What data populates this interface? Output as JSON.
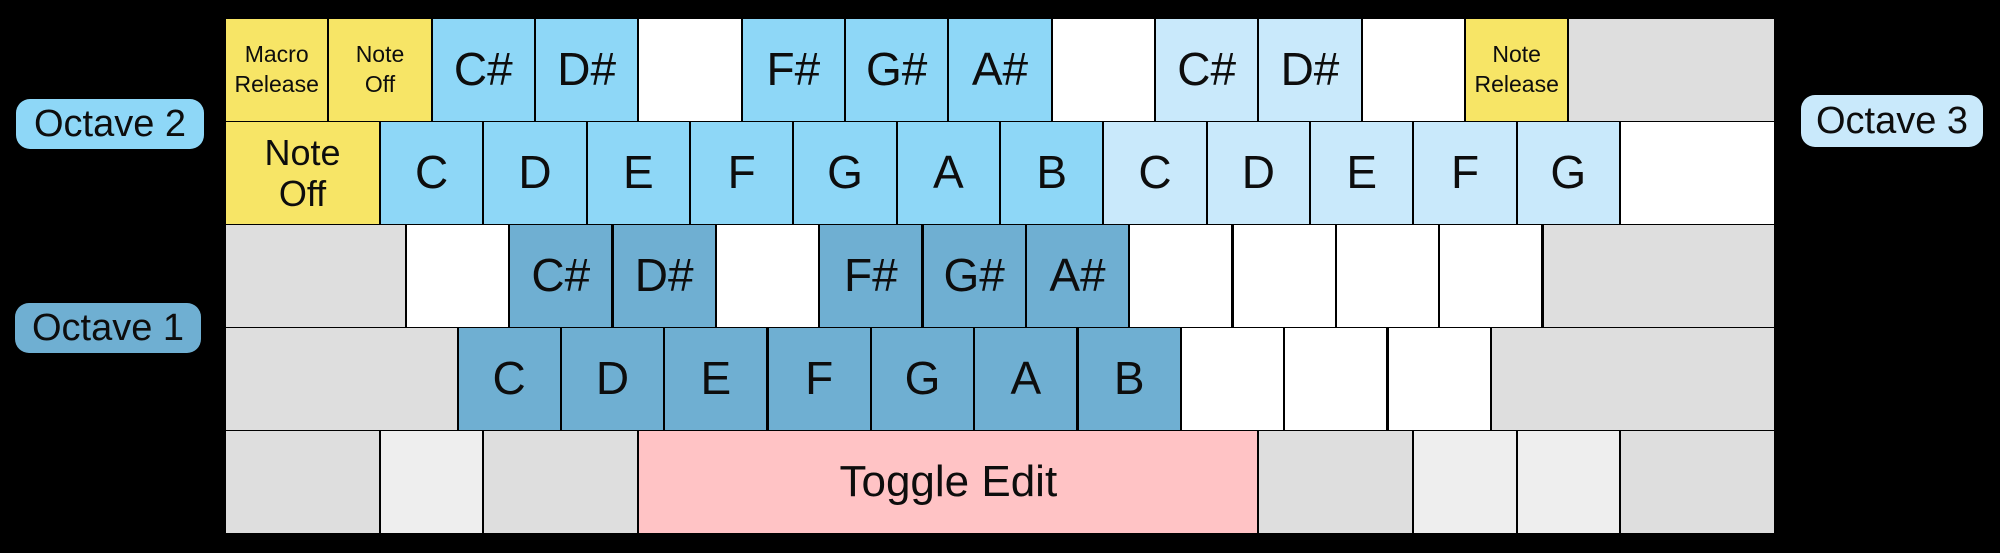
{
  "colors": {
    "background": "#000000",
    "key_border": "#000000",
    "text": "#0d0d0d",
    "octave1": "#6FAFD2",
    "octave2": "#8ED7F7",
    "octave3": "#C9E9FB",
    "function": "#F7E566",
    "toggle": "#FFC3C5",
    "blank": "#FFFFFF",
    "gray": "#DEDEDE",
    "graylight": "#EEEEEE",
    "pill_octave1": "#6FAFD2",
    "pill_octave2": "#8ED7F7",
    "pill_octave3": "#C9E9FB"
  },
  "labels": {
    "octave1": "Octave 1",
    "octave2": "Octave 2",
    "octave3": "Octave 3"
  },
  "keyboard": {
    "rows": [
      {
        "name": "number-row",
        "keys": [
          {
            "label": "Macro\nRelease",
            "type": "function",
            "w": 1,
            "fs": "sm"
          },
          {
            "label": "Note\nOff",
            "type": "function",
            "w": 1,
            "fs": "sm"
          },
          {
            "label": "C#",
            "type": "octave2",
            "w": 1
          },
          {
            "label": "D#",
            "type": "octave2",
            "w": 1
          },
          {
            "label": "",
            "type": "blank",
            "w": 1
          },
          {
            "label": "F#",
            "type": "octave2",
            "w": 1
          },
          {
            "label": "G#",
            "type": "octave2",
            "w": 1
          },
          {
            "label": "A#",
            "type": "octave2",
            "w": 1
          },
          {
            "label": "",
            "type": "blank",
            "w": 1
          },
          {
            "label": "C#",
            "type": "octave3",
            "w": 1
          },
          {
            "label": "D#",
            "type": "octave3",
            "w": 1
          },
          {
            "label": "",
            "type": "blank",
            "w": 1
          },
          {
            "label": "Note\nRelease",
            "type": "function",
            "w": 1,
            "fs": "sm"
          },
          {
            "label": "",
            "type": "gray",
            "w": 2
          }
        ]
      },
      {
        "name": "qwerty-row",
        "keys": [
          {
            "label": "Note\nOff",
            "type": "function",
            "w": 1.5,
            "fs": "md"
          },
          {
            "label": "C",
            "type": "octave2",
            "w": 1
          },
          {
            "label": "D",
            "type": "octave2",
            "w": 1
          },
          {
            "label": "E",
            "type": "octave2",
            "w": 1
          },
          {
            "label": "F",
            "type": "octave2",
            "w": 1
          },
          {
            "label": "G",
            "type": "octave2",
            "w": 1
          },
          {
            "label": "A",
            "type": "octave2",
            "w": 1
          },
          {
            "label": "B",
            "type": "octave2",
            "w": 1
          },
          {
            "label": "C",
            "type": "octave3",
            "w": 1
          },
          {
            "label": "D",
            "type": "octave3",
            "w": 1
          },
          {
            "label": "E",
            "type": "octave3",
            "w": 1
          },
          {
            "label": "F",
            "type": "octave3",
            "w": 1
          },
          {
            "label": "G",
            "type": "octave3",
            "w": 1
          },
          {
            "label": "",
            "type": "blank",
            "w": 1.5
          }
        ]
      },
      {
        "name": "home-row",
        "keys": [
          {
            "label": "",
            "type": "gray",
            "w": 1.75
          },
          {
            "label": "",
            "type": "blank",
            "w": 1
          },
          {
            "label": "C#",
            "type": "octave1",
            "w": 1
          },
          {
            "label": "D#",
            "type": "octave1",
            "w": 1
          },
          {
            "label": "",
            "type": "blank",
            "w": 1
          },
          {
            "label": "F#",
            "type": "octave1",
            "w": 1
          },
          {
            "label": "G#",
            "type": "octave1",
            "w": 1
          },
          {
            "label": "A#",
            "type": "octave1",
            "w": 1
          },
          {
            "label": "",
            "type": "blank",
            "w": 1
          },
          {
            "label": "",
            "type": "blank",
            "w": 1
          },
          {
            "label": "",
            "type": "blank",
            "w": 1
          },
          {
            "label": "",
            "type": "blank",
            "w": 1
          },
          {
            "label": "",
            "type": "gray",
            "w": 2.25
          }
        ]
      },
      {
        "name": "bottom-letter-row",
        "keys": [
          {
            "label": "",
            "type": "gray",
            "w": 2.25
          },
          {
            "label": "C",
            "type": "octave1",
            "w": 1
          },
          {
            "label": "D",
            "type": "octave1",
            "w": 1
          },
          {
            "label": "E",
            "type": "octave1",
            "w": 1
          },
          {
            "label": "F",
            "type": "octave1",
            "w": 1
          },
          {
            "label": "G",
            "type": "octave1",
            "w": 1
          },
          {
            "label": "A",
            "type": "octave1",
            "w": 1
          },
          {
            "label": "B",
            "type": "octave1",
            "w": 1
          },
          {
            "label": "",
            "type": "blank",
            "w": 1
          },
          {
            "label": "",
            "type": "blank",
            "w": 1
          },
          {
            "label": "",
            "type": "blank",
            "w": 1
          },
          {
            "label": "",
            "type": "gray",
            "w": 2.75
          }
        ]
      },
      {
        "name": "space-row",
        "keys": [
          {
            "label": "",
            "type": "gray",
            "w": 1.5
          },
          {
            "label": "",
            "type": "graylight",
            "w": 1
          },
          {
            "label": "",
            "type": "gray",
            "w": 1.5
          },
          {
            "label": "Toggle Edit",
            "type": "toggle",
            "w": 6,
            "fs": "xl"
          },
          {
            "label": "",
            "type": "gray",
            "w": 1.5
          },
          {
            "label": "",
            "type": "graylight",
            "w": 1
          },
          {
            "label": "",
            "type": "graylight",
            "w": 1
          },
          {
            "label": "",
            "type": "gray",
            "w": 1.5
          }
        ]
      }
    ]
  }
}
